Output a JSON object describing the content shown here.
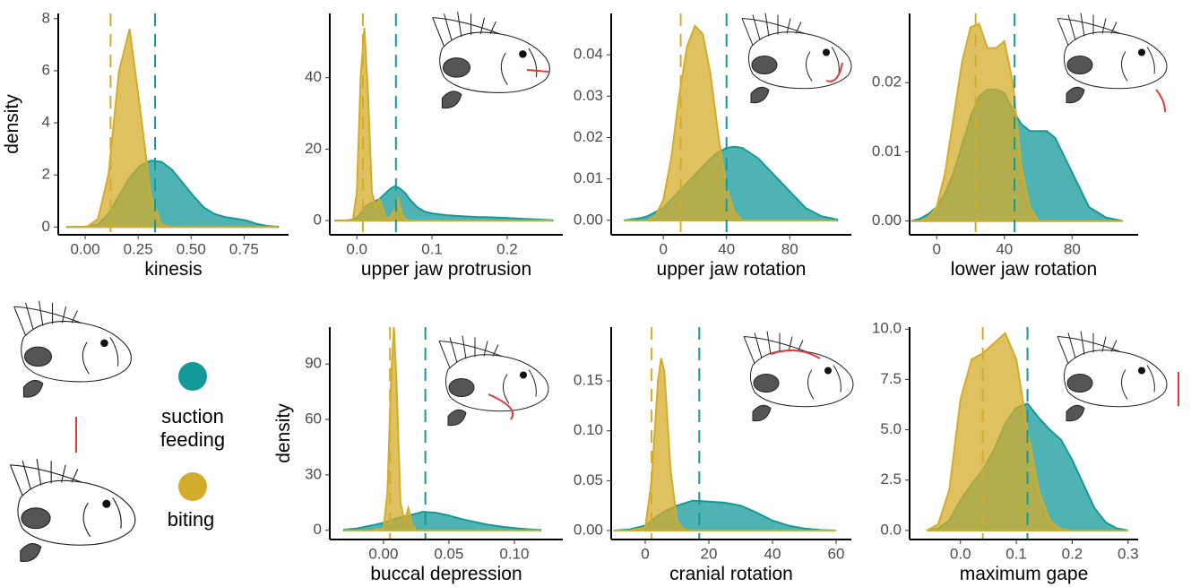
{
  "legend": [
    {
      "name": "suction feeding",
      "color": "#14999b"
    },
    {
      "name": "biting",
      "color": "#d4ac2b"
    }
  ],
  "chart_data": [
    {
      "type": "density",
      "xlabel": "kinesis",
      "ylabel": "density",
      "x": [
        -0.09,
        -0.04,
        0.01,
        0.06,
        0.11,
        0.16,
        0.21,
        0.26,
        0.31,
        0.36,
        0.41,
        0.46,
        0.51,
        0.56,
        0.61,
        0.66,
        0.71,
        0.76,
        0.81,
        0.86,
        0.91
      ],
      "series": [
        {
          "color": "#14999b",
          "values": [
            0,
            0,
            0.02,
            0.1,
            0.5,
            1.2,
            1.9,
            2.35,
            2.55,
            2.5,
            2.2,
            1.7,
            1.2,
            0.75,
            0.5,
            0.38,
            0.32,
            0.25,
            0.12,
            0.04,
            0.01
          ],
          "vline": 0.33
        },
        {
          "color": "#d4ac2b",
          "values": [
            0,
            0,
            0.02,
            0.3,
            2.0,
            6.0,
            7.6,
            4.5,
            1.2,
            0.1,
            0,
            0,
            0,
            0,
            0,
            0,
            0,
            0,
            0,
            0,
            0
          ],
          "vline": 0.12
        }
      ],
      "xlim": [
        -0.127,
        0.96
      ],
      "ylim": [
        -0.3,
        8.2
      ],
      "xticks": [
        {
          "value": 0,
          "label": "0.00"
        },
        {
          "value": 0.25,
          "label": "0.25"
        },
        {
          "value": 0.5,
          "label": "0.50"
        },
        {
          "value": 0.75,
          "label": "0.75"
        }
      ],
      "yticks": [
        0,
        2,
        4,
        6,
        8
      ]
    },
    {
      "type": "density",
      "xlabel": "upper jaw protrusion",
      "x": [
        -0.03,
        -0.02,
        -0.01,
        -0.005,
        0,
        0.005,
        0.01,
        0.015,
        0.02,
        0.025,
        0.03,
        0.035,
        0.04,
        0.045,
        0.05,
        0.055,
        0.06,
        0.065,
        0.07,
        0.08,
        0.09,
        0.1,
        0.12,
        0.14,
        0.16,
        0.18,
        0.2,
        0.22,
        0.24,
        0.26
      ],
      "series": [
        {
          "color": "#14999b",
          "values": [
            0,
            0,
            0.1,
            0.3,
            0.8,
            2,
            3.5,
            4.5,
            5,
            5.5,
            6,
            7,
            8,
            9,
            9.5,
            9.3,
            8.5,
            7.5,
            6,
            3.8,
            2.5,
            2,
            1.5,
            1.2,
            1,
            0.9,
            0.7,
            0.5,
            0.3,
            0.1
          ],
          "vline": 0.052
        },
        {
          "color": "#d4ac2b",
          "values": [
            0,
            0,
            0,
            0.5,
            8,
            40,
            54,
            35,
            8,
            4,
            6,
            3,
            0.5,
            1,
            3,
            6,
            2,
            0.3,
            0,
            0,
            0,
            0,
            0,
            0,
            0,
            0,
            0,
            0,
            0,
            0
          ],
          "vline": 0.008
        }
      ],
      "xlim": [
        -0.036,
        0.274
      ],
      "ylim": [
        -4,
        58
      ],
      "xticks": [
        {
          "value": 0,
          "label": "0.0"
        },
        {
          "value": 0.1,
          "label": "0.1"
        },
        {
          "value": 0.2,
          "label": "0.2"
        }
      ],
      "yticks": [
        0,
        20,
        40
      ]
    },
    {
      "type": "density",
      "xlabel": "upper jaw rotation",
      "x": [
        -25,
        -15,
        -10,
        -5,
        0,
        5,
        10,
        15,
        20,
        25,
        30,
        35,
        40,
        45,
        50,
        60,
        70,
        80,
        90,
        100,
        110
      ],
      "series": [
        {
          "color": "#14999b",
          "values": [
            0,
            0.0005,
            0.001,
            0.002,
            0.003,
            0.005,
            0.007,
            0.009,
            0.011,
            0.013,
            0.015,
            0.0165,
            0.0175,
            0.0178,
            0.0175,
            0.015,
            0.011,
            0.007,
            0.003,
            0.001,
            0.0002
          ],
          "vline": 40
        },
        {
          "color": "#d4ac2b",
          "values": [
            0,
            0,
            0,
            0.001,
            0.005,
            0.015,
            0.03,
            0.042,
            0.047,
            0.045,
            0.035,
            0.02,
            0.008,
            0.002,
            0,
            0,
            0,
            0,
            0,
            0,
            0
          ],
          "vline": 11
        }
      ],
      "xlim": [
        -33,
        119
      ],
      "ylim": [
        -0.0035,
        0.05
      ],
      "xticks": [
        0,
        40,
        80
      ],
      "yticks": [
        {
          "value": 0,
          "label": "0.00"
        },
        {
          "value": 0.01,
          "label": "0.01"
        },
        {
          "value": 0.02,
          "label": "0.02"
        },
        {
          "value": 0.03,
          "label": "0.03"
        },
        {
          "value": 0.04,
          "label": "0.04"
        }
      ]
    },
    {
      "type": "density",
      "xlabel": "lower jaw rotation",
      "x": [
        -15,
        -10,
        -5,
        0,
        5,
        10,
        15,
        20,
        25,
        30,
        35,
        40,
        45,
        50,
        55,
        60,
        65,
        70,
        80,
        90,
        100,
        110
      ],
      "series": [
        {
          "color": "#14999b",
          "values": [
            0,
            0.0003,
            0.001,
            0.002,
            0.004,
            0.007,
            0.011,
            0.015,
            0.018,
            0.019,
            0.019,
            0.0185,
            0.016,
            0.014,
            0.013,
            0.013,
            0.013,
            0.012,
            0.007,
            0.002,
            0.0005,
            0
          ],
          "vline": 46
        },
        {
          "color": "#d4ac2b",
          "values": [
            0,
            0,
            0.0005,
            0.002,
            0.007,
            0.015,
            0.023,
            0.028,
            0.0285,
            0.025,
            0.025,
            0.026,
            0.02,
            0.008,
            0.002,
            0,
            0,
            0,
            0,
            0,
            0,
            0
          ],
          "vline": 23
        }
      ],
      "xlim": [
        -16,
        119
      ],
      "ylim": [
        -0.002,
        0.03
      ],
      "xticks": [
        0,
        40,
        80
      ],
      "yticks": [
        {
          "value": 0,
          "label": "0.00"
        },
        {
          "value": 0.01,
          "label": "0.01"
        },
        {
          "value": 0.02,
          "label": "0.02"
        }
      ]
    },
    {
      "type": "density",
      "xlabel": "buccal depression",
      "ylabel": "density",
      "x": [
        -0.03,
        -0.02,
        -0.01,
        0,
        0.003,
        0.006,
        0.008,
        0.01,
        0.013,
        0.016,
        0.019,
        0.022,
        0.025,
        0.03,
        0.04,
        0.05,
        0.06,
        0.07,
        0.08,
        0.09,
        0.1,
        0.11,
        0.12
      ],
      "series": [
        {
          "color": "#14999b",
          "values": [
            0.3,
            1,
            2.5,
            4,
            4.8,
            5.5,
            6,
            6.5,
            7,
            7.5,
            8,
            8.5,
            9,
            10,
            9.5,
            8,
            6,
            4.5,
            3,
            2,
            1.2,
            0.6,
            0.2
          ],
          "vline": 0.032
        },
        {
          "color": "#d4ac2b",
          "values": [
            0,
            0,
            0,
            1,
            20,
            85,
            110,
            80,
            15,
            5,
            12,
            3,
            0,
            0,
            0,
            0,
            0,
            0,
            0,
            0,
            0,
            0,
            0
          ],
          "vline": 0.005
        }
      ],
      "xlim": [
        -0.041,
        0.137
      ],
      "ylim": [
        -5,
        110
      ],
      "xticks": [
        {
          "value": 0,
          "label": "0.00"
        },
        {
          "value": 0.05,
          "label": "0.05"
        },
        {
          "value": 0.1,
          "label": "0.10"
        }
      ],
      "yticks": [
        0,
        30,
        60,
        90
      ]
    },
    {
      "type": "density",
      "xlabel": "cranial rotation",
      "x": [
        -10,
        -5,
        0,
        2,
        4,
        5,
        6,
        8,
        10,
        12,
        15,
        20,
        25,
        30,
        35,
        40,
        45,
        50,
        55,
        60
      ],
      "series": [
        {
          "color": "#14999b",
          "values": [
            0,
            0.001,
            0.005,
            0.01,
            0.015,
            0.017,
            0.019,
            0.022,
            0.025,
            0.027,
            0.03,
            0.029,
            0.028,
            0.025,
            0.018,
            0.01,
            0.005,
            0.002,
            0.0005,
            0
          ],
          "vline": 17
        },
        {
          "color": "#d4ac2b",
          "values": [
            0,
            0,
            0.003,
            0.05,
            0.15,
            0.173,
            0.16,
            0.06,
            0.01,
            0.001,
            0,
            0,
            0,
            0,
            0,
            0,
            0,
            0,
            0,
            0
          ],
          "vline": 2
        }
      ],
      "xlim": [
        -10.7,
        64.8
      ],
      "ylim": [
        -0.009,
        0.204
      ],
      "xticks": [
        0,
        20,
        40,
        60
      ],
      "yticks": [
        {
          "value": 0,
          "label": "0.00"
        },
        {
          "value": 0.05,
          "label": "0.05"
        },
        {
          "value": 0.1,
          "label": "0.10"
        },
        {
          "value": 0.15,
          "label": "0.15"
        }
      ]
    },
    {
      "type": "density",
      "xlabel": "maximum gape",
      "x": [
        -0.06,
        -0.04,
        -0.02,
        0,
        0.02,
        0.04,
        0.06,
        0.08,
        0.1,
        0.12,
        0.14,
        0.16,
        0.18,
        0.2,
        0.22,
        0.24,
        0.26,
        0.28,
        0.3
      ],
      "series": [
        {
          "color": "#14999b",
          "values": [
            0,
            0.1,
            0.5,
            1.5,
            2.3,
            3,
            4,
            5.3,
            6.1,
            6.3,
            5.6,
            5,
            4.5,
            3.5,
            2.3,
            1.1,
            0.4,
            0.1,
            0
          ],
          "vline": 0.12
        },
        {
          "color": "#d4ac2b",
          "values": [
            0,
            0.3,
            2,
            6.5,
            8.5,
            8.8,
            9.3,
            9.8,
            8.5,
            5,
            2,
            0.5,
            0.05,
            0,
            0,
            0,
            0,
            0,
            0
          ],
          "vline": 0.04
        }
      ],
      "xlim": [
        -0.091,
        0.318
      ],
      "ylim": [
        -0.45,
        10.1
      ],
      "xticks": [
        {
          "value": 0,
          "label": "0.0"
        },
        {
          "value": 0.1,
          "label": "0.1"
        },
        {
          "value": 0.2,
          "label": "0.2"
        },
        {
          "value": 0.3,
          "label": "0.3"
        }
      ],
      "yticks": [
        {
          "value": 0,
          "label": "0.0"
        },
        {
          "value": 2.5,
          "label": "2.5"
        },
        {
          "value": 5,
          "label": "5.0"
        },
        {
          "value": 7.5,
          "label": "7.5"
        },
        {
          "value": 10,
          "label": "10.0"
        }
      ]
    }
  ]
}
